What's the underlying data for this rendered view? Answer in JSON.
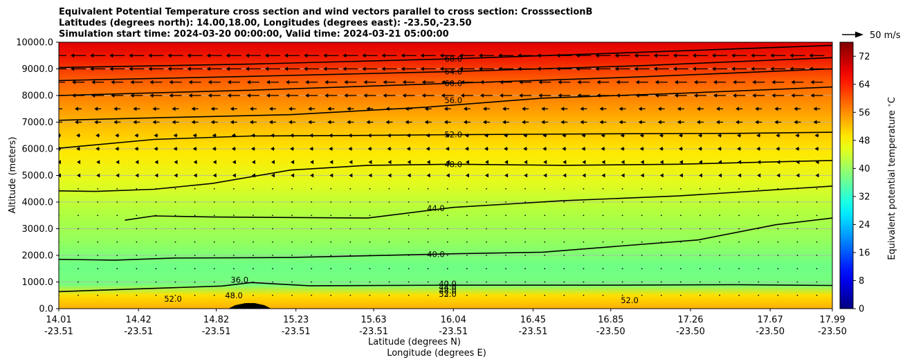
{
  "chart_data": {
    "type": "heatmap",
    "title_lines": [
      "Equivalent Potential Temperature cross section and wind vectors parallel to cross section: CrosssectionB",
      "Latitudes (degrees north): 14.00,18.00, Longitudes (degrees east): -23.50,-23.50",
      "Simulation start time: 2024-03-20 00:00:00, Valid time: 2024-03-21 05:00:00"
    ],
    "ylabel": "Altitude (meters)",
    "xlabel_lat": "Latitude (degrees N)",
    "xlabel_lon": "Longitude (degrees E)",
    "ylim": [
      0,
      10000
    ],
    "yticks": [
      "0.0",
      "1000.0",
      "2000.0",
      "3000.0",
      "4000.0",
      "5000.0",
      "6000.0",
      "7000.0",
      "8000.0",
      "9000.0",
      "10000.0"
    ],
    "xticks_lat": [
      "14.01",
      "14.42",
      "14.82",
      "15.23",
      "15.63",
      "16.04",
      "16.45",
      "16.85",
      "17.26",
      "17.67",
      "17.99"
    ],
    "xticks_lon": [
      "-23.51",
      "-23.51",
      "-23.51",
      "-23.51",
      "-23.51",
      "-23.51",
      "-23.51",
      "-23.50",
      "-23.50",
      "-23.50",
      "-23.50"
    ],
    "colorbar": {
      "label": "Equivalent potential temperature $^\\circ$C",
      "label_text": "Equivalent potential temperature ",
      "label_sup": "∘",
      "label_unit": "C",
      "ticks": [
        "0",
        "8",
        "16",
        "24",
        "32",
        "40",
        "48",
        "56",
        "64",
        "72"
      ],
      "range": [
        0,
        76
      ],
      "colormap": "jet"
    },
    "quiver_key": "50 m/s",
    "grid": "horizontal",
    "contour_levels": [
      {
        "level": 68,
        "labels": [
          {
            "text": "68.0",
            "x": 16.04,
            "y": 9380
          }
        ],
        "points": [
          [
            14.01,
            9050
          ],
          [
            15.0,
            9180
          ],
          [
            16.04,
            9380
          ],
          [
            17.0,
            9620
          ],
          [
            17.99,
            9880
          ]
        ]
      },
      {
        "level": 64,
        "labels": [
          {
            "text": "64.0",
            "x": 16.04,
            "y": 8900
          }
        ],
        "points": [
          [
            14.01,
            8560
          ],
          [
            15.0,
            8720
          ],
          [
            16.04,
            8900
          ],
          [
            17.0,
            9120
          ],
          [
            17.99,
            9420
          ]
        ]
      },
      {
        "level": 60,
        "labels": [
          {
            "text": "60.0",
            "x": 16.04,
            "y": 8460
          }
        ],
        "points": [
          [
            14.01,
            8000
          ],
          [
            15.0,
            8200
          ],
          [
            16.04,
            8460
          ],
          [
            17.0,
            8700
          ],
          [
            17.99,
            9000
          ]
        ]
      },
      {
        "level": 56,
        "labels": [
          {
            "text": "56.0",
            "x": 16.04,
            "y": 7820
          }
        ],
        "points": [
          [
            14.01,
            7070
          ],
          [
            14.6,
            7180
          ],
          [
            15.2,
            7280
          ],
          [
            15.9,
            7560
          ],
          [
            16.5,
            7900
          ],
          [
            17.2,
            8080
          ],
          [
            17.99,
            8320
          ]
        ]
      },
      {
        "level": 52,
        "labels": [
          {
            "text": "52.0",
            "x": 16.04,
            "y": 6530
          }
        ],
        "points": [
          [
            14.01,
            6020
          ],
          [
            14.5,
            6350
          ],
          [
            15.0,
            6480
          ],
          [
            15.5,
            6500
          ],
          [
            16.04,
            6530
          ],
          [
            16.8,
            6560
          ],
          [
            17.5,
            6580
          ],
          [
            17.99,
            6620
          ]
        ]
      },
      {
        "level": 48,
        "labels": [
          {
            "text": "48.0",
            "x": 16.04,
            "y": 5420
          }
        ],
        "points": [
          [
            14.01,
            4420
          ],
          [
            14.2,
            4400
          ],
          [
            14.5,
            4480
          ],
          [
            14.8,
            4700
          ],
          [
            15.2,
            5200
          ],
          [
            15.6,
            5380
          ],
          [
            16.04,
            5420
          ],
          [
            16.6,
            5380
          ],
          [
            17.2,
            5420
          ],
          [
            17.99,
            5560
          ]
        ]
      },
      {
        "level": 44,
        "labels": [
          {
            "text": "44.0",
            "x": 15.95,
            "y": 3770
          }
        ],
        "points": [
          [
            14.35,
            3320
          ],
          [
            14.5,
            3480
          ],
          [
            14.8,
            3440
          ],
          [
            15.2,
            3420
          ],
          [
            15.6,
            3400
          ],
          [
            16.04,
            3800
          ],
          [
            16.6,
            4050
          ],
          [
            17.2,
            4230
          ],
          [
            17.99,
            4600
          ]
        ]
      },
      {
        "level": 40,
        "labels": [
          {
            "text": "40.0",
            "x": 15.95,
            "y": 2040
          }
        ],
        "points": [
          [
            14.01,
            1850
          ],
          [
            14.3,
            1820
          ],
          [
            14.6,
            1900
          ],
          [
            15.2,
            1920
          ],
          [
            16.04,
            2060
          ],
          [
            16.5,
            2120
          ],
          [
            16.9,
            2350
          ],
          [
            17.3,
            2580
          ],
          [
            17.7,
            3150
          ],
          [
            17.99,
            3400
          ]
        ]
      },
      {
        "level": 36,
        "labels": [
          {
            "text": "36.0",
            "x": 14.94,
            "y": 1080
          }
        ],
        "points": [
          [
            14.01,
            640
          ],
          [
            14.5,
            760
          ],
          [
            14.85,
            850
          ],
          [
            15.0,
            980
          ],
          [
            15.3,
            860
          ],
          [
            16.0,
            880
          ],
          [
            16.8,
            880
          ],
          [
            17.5,
            900
          ],
          [
            17.99,
            870
          ]
        ]
      }
    ],
    "near_surface_labels": [
      "40.0",
      "44.0",
      "48.0",
      "52.0",
      "52.0",
      "48.0",
      "52.0"
    ]
  }
}
